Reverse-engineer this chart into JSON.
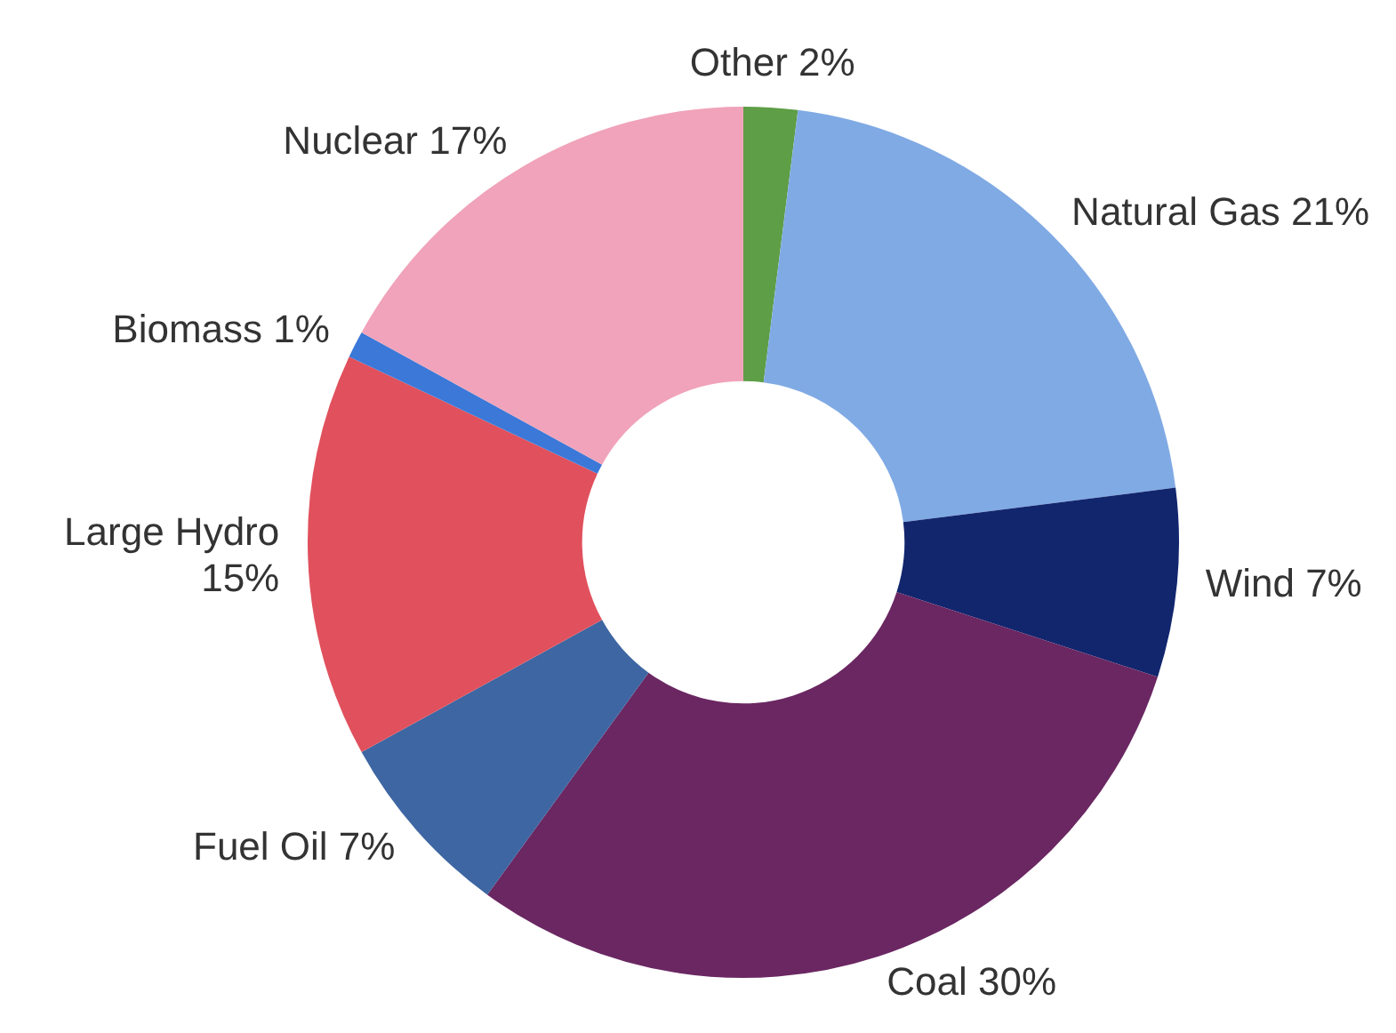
{
  "chart_data": {
    "type": "donut",
    "categories": [
      "Other",
      "Natural Gas",
      "Wind",
      "Coal",
      "Fuel Oil",
      "Large Hydro",
      "Biomass",
      "Nuclear"
    ],
    "values": [
      2,
      21,
      7,
      30,
      7,
      15,
      1,
      17
    ],
    "value_labels": [
      "2%",
      "21%",
      "7%",
      "30%",
      "7%",
      "15%",
      "1%",
      "17%"
    ],
    "colors": [
      "#5e9e46",
      "#80aae4",
      "#12266e",
      "#6a2762",
      "#3d66a2",
      "#e0515d",
      "#3b78d8",
      "#f0a3ba"
    ],
    "legend": false
  }
}
